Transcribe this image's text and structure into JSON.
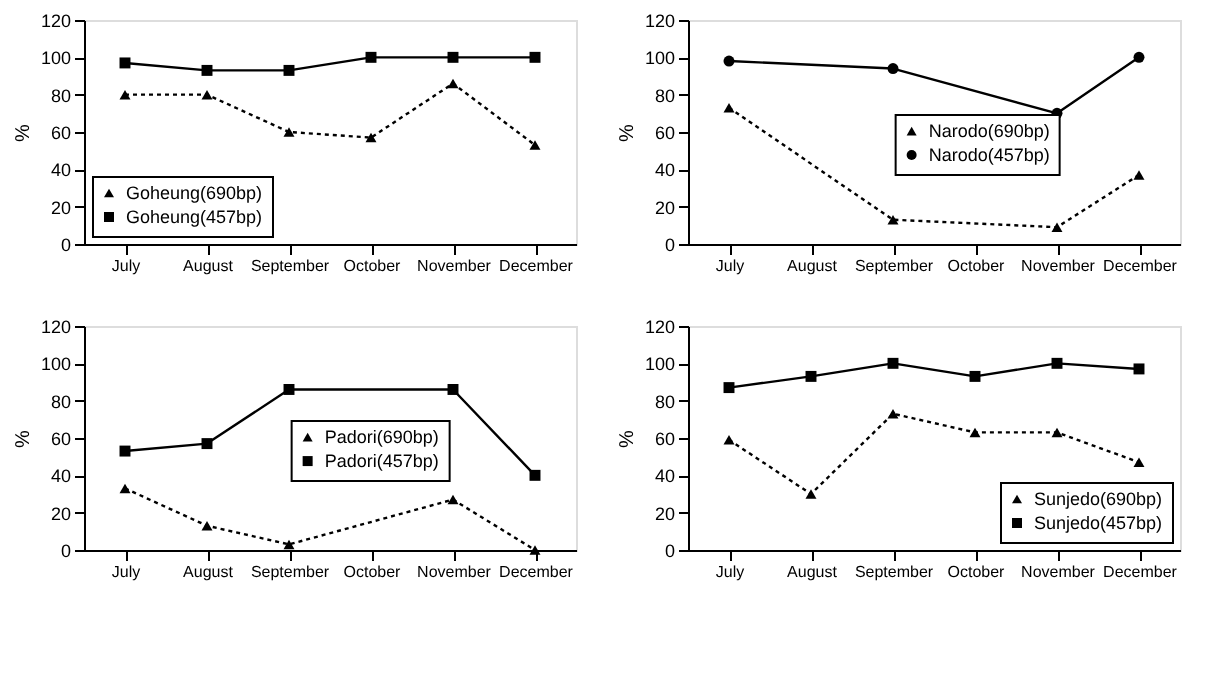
{
  "chart_data": [
    {
      "type": "line",
      "ylabel": "%",
      "categories": [
        "July",
        "August",
        "September",
        "October",
        "November",
        "December"
      ],
      "ylim": [
        0,
        120
      ],
      "yticks": [
        0,
        20,
        40,
        60,
        80,
        100,
        120
      ],
      "legend": "bottom left",
      "grid": false,
      "series": [
        {
          "name": "Goheung(690bp)",
          "color": "#000000",
          "marker": "triangle",
          "line_style": "dotted",
          "values": [
            80,
            80,
            60,
            57,
            86,
            53
          ]
        },
        {
          "name": "Goheung(457bp)",
          "color": "#000000",
          "marker": "square",
          "line_style": "solid",
          "values": [
            97,
            93,
            93,
            100,
            100,
            100
          ]
        }
      ]
    },
    {
      "type": "line",
      "ylabel": "%",
      "categories": [
        "July",
        "August",
        "September",
        "October",
        "November",
        "December"
      ],
      "ylim": [
        0,
        120
      ],
      "yticks": [
        0,
        20,
        40,
        60,
        80,
        100,
        120
      ],
      "legend": "center",
      "grid": false,
      "series": [
        {
          "name": "Narodo(690bp)",
          "color": "#000000",
          "marker": "triangle",
          "line_style": "dotted",
          "values": [
            73,
            null,
            13,
            null,
            9,
            37
          ]
        },
        {
          "name": "Narodo(457bp)",
          "color": "#000000",
          "marker": "circle",
          "line_style": "solid",
          "values": [
            98,
            null,
            94,
            null,
            70,
            100
          ]
        }
      ]
    },
    {
      "type": "line",
      "ylabel": "%",
      "categories": [
        "July",
        "August",
        "September",
        "October",
        "November",
        "December"
      ],
      "ylim": [
        0,
        120
      ],
      "yticks": [
        0,
        20,
        40,
        60,
        80,
        100,
        120
      ],
      "legend": "center",
      "grid": false,
      "series": [
        {
          "name": "Padori(690bp)",
          "color": "#000000",
          "marker": "triangle",
          "line_style": "dotted",
          "values": [
            33,
            13,
            3,
            null,
            27,
            0
          ]
        },
        {
          "name": "Padori(457bp)",
          "color": "#000000",
          "marker": "square",
          "line_style": "solid",
          "values": [
            53,
            57,
            86,
            null,
            86,
            40
          ]
        }
      ]
    },
    {
      "type": "line",
      "ylabel": "%",
      "categories": [
        "July",
        "August",
        "September",
        "October",
        "November",
        "December"
      ],
      "ylim": [
        0,
        120
      ],
      "yticks": [
        0,
        20,
        40,
        60,
        80,
        100,
        120
      ],
      "legend": "bottom right",
      "grid": false,
      "series": [
        {
          "name": "Sunjedo(690bp)",
          "color": "#000000",
          "marker": "triangle",
          "line_style": "dotted",
          "values": [
            59,
            30,
            73,
            63,
            63,
            47
          ]
        },
        {
          "name": "Sunjedo(457bp)",
          "color": "#000000",
          "marker": "square",
          "line_style": "solid",
          "values": [
            87,
            93,
            100,
            93,
            100,
            97
          ]
        }
      ]
    }
  ]
}
